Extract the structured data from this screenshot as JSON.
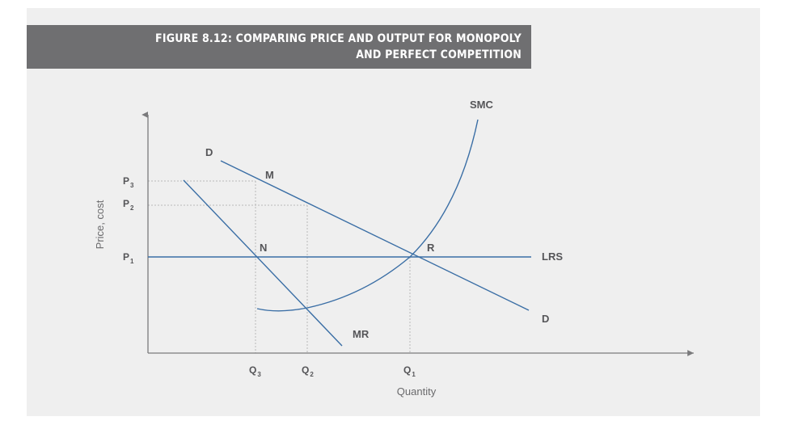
{
  "title": {
    "line1": "FIGURE 8.12: COMPARING PRICE AND OUTPUT FOR MONOPOLY",
    "line2": "AND PERFECT COMPETITION"
  },
  "axes": {
    "x_label": "Quantity",
    "y_label": "Price, cost"
  },
  "curve_labels": {
    "smc": "SMC",
    "lrs": "LRS",
    "d_top": "D",
    "d_bottom": "D",
    "mr": "MR"
  },
  "points": {
    "m": "M",
    "n": "N",
    "r": "R"
  },
  "y_ticks": [
    {
      "main": "P",
      "sub": "3"
    },
    {
      "main": "P",
      "sub": "2"
    },
    {
      "main": "P",
      "sub": "1"
    }
  ],
  "x_ticks": [
    {
      "main": "Q",
      "sub": "3"
    },
    {
      "main": "Q",
      "sub": "2"
    },
    {
      "main": "Q",
      "sub": "1"
    }
  ],
  "colors": {
    "curve": "#3a6ea5",
    "banner": "#6f6f71",
    "panel": "#efefef",
    "guide": "#b8b8b8"
  }
}
